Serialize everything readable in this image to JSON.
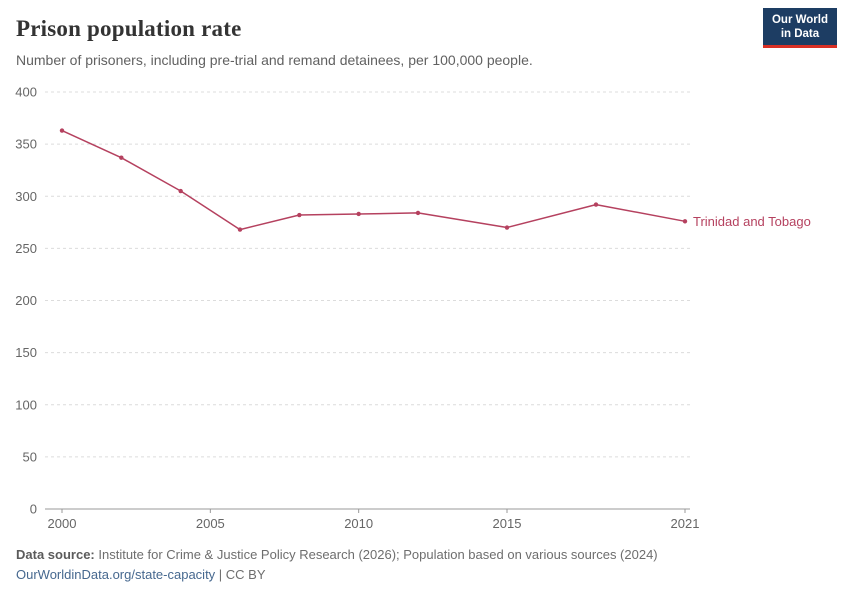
{
  "header": {
    "title": "Prison population rate",
    "subtitle": "Number of prisoners, including pre-trial and remand detainees, per 100,000 people."
  },
  "logo": {
    "line1": "Our World",
    "line2": "in Data",
    "bg_color": "#1d3d63",
    "accent_color": "#d93025"
  },
  "chart_data": {
    "type": "line",
    "title": "Prison population rate",
    "xlabel": "",
    "ylabel": "",
    "xlim": [
      2000,
      2021
    ],
    "ylim": [
      0,
      400
    ],
    "x_ticks": [
      2000,
      2005,
      2010,
      2015,
      2021
    ],
    "y_ticks": [
      0,
      50,
      100,
      150,
      200,
      250,
      300,
      350,
      400
    ],
    "grid": true,
    "legend_position": "end-of-line",
    "series": [
      {
        "name": "Trinidad and Tobago",
        "color": "#b5415f",
        "x": [
          2000,
          2002,
          2004,
          2006,
          2008,
          2010,
          2012,
          2015,
          2018,
          2021
        ],
        "values": [
          363,
          337,
          305,
          268,
          282,
          283,
          284,
          270,
          292,
          276
        ]
      }
    ]
  },
  "footer": {
    "source_label": "Data source:",
    "source_text": " Institute for Crime & Justice Policy Research (2026); Population based on various sources (2024)",
    "link": "OurWorldinData.org/state-capacity",
    "separator": " | ",
    "license": "CC BY"
  }
}
